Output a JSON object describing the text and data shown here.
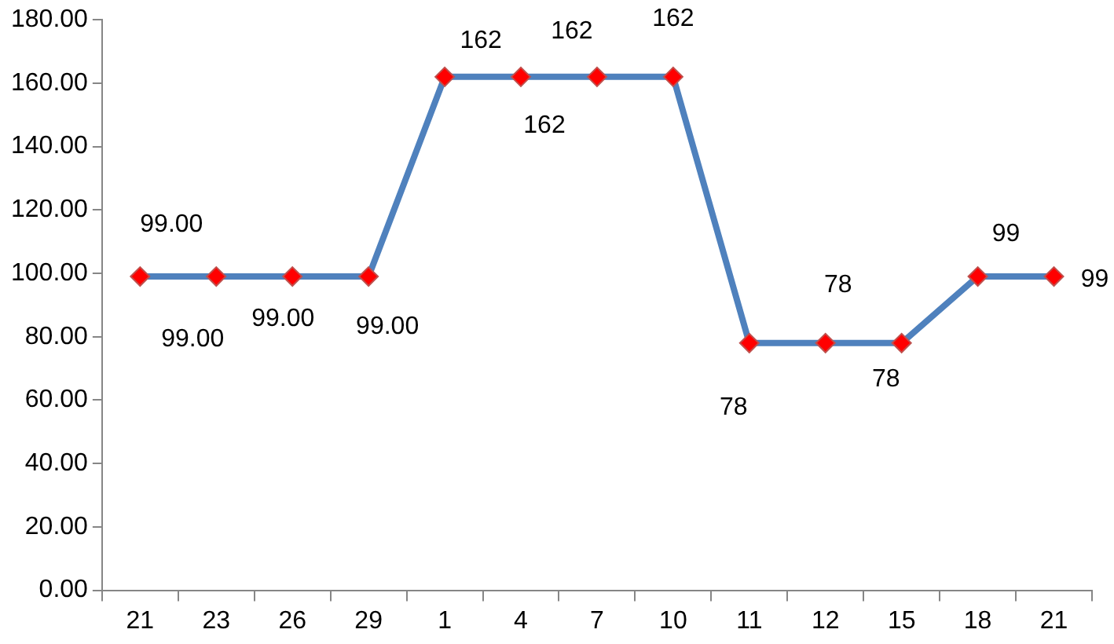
{
  "chart_data": {
    "type": "line",
    "categories": [
      "21",
      "23",
      "26",
      "29",
      "1",
      "4",
      "7",
      "10",
      "11",
      "12",
      "15",
      "18",
      "21"
    ],
    "series": [
      {
        "color": "#4f81bd",
        "values": [
          99,
          99,
          99,
          99,
          162,
          162,
          162,
          162,
          78,
          78,
          78,
          99,
          99
        ],
        "value_labels": [
          "99.00",
          "99.00",
          "99.00",
          "99.00",
          "162",
          "162",
          "162",
          "162",
          "78",
          "78",
          "78",
          "99",
          "99"
        ]
      }
    ],
    "ylim": [
      0,
      180
    ],
    "yticks": [
      {
        "value": 0,
        "label": "0.00"
      },
      {
        "value": 20,
        "label": "20.00"
      },
      {
        "value": 40,
        "label": "40.00"
      },
      {
        "value": 60,
        "label": "60.00"
      },
      {
        "value": 80,
        "label": "80.00"
      },
      {
        "value": 100,
        "label": "100.00"
      },
      {
        "value": 120,
        "label": "120.00"
      },
      {
        "value": 140,
        "label": "140.00"
      },
      {
        "value": 160,
        "label": "160.00"
      },
      {
        "value": 180,
        "label": "180.00"
      }
    ],
    "marker": "diamond",
    "grid": false,
    "legend": false
  }
}
